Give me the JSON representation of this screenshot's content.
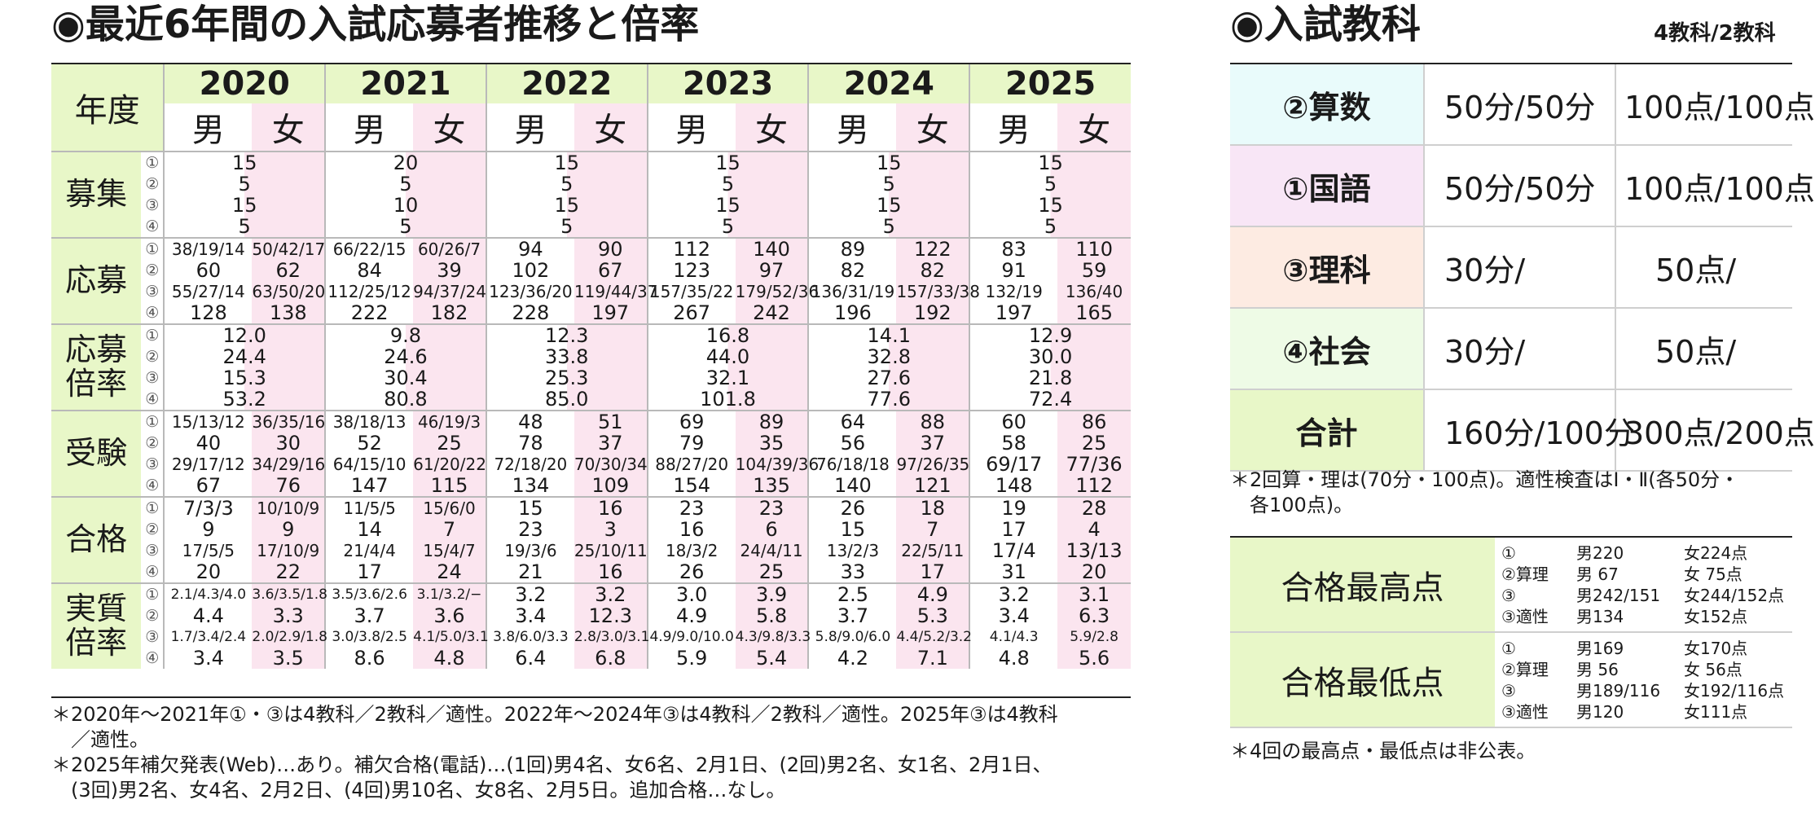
{
  "left": {
    "title": "◉最近6年間の入試応募者推移と倍率",
    "header": {
      "nendo": "年度",
      "years": [
        "2020",
        "2021",
        "2022",
        "2023",
        "2024",
        "2025"
      ],
      "male": "男",
      "female": "女"
    },
    "rows": [
      {
        "label": "募集",
        "merged": true,
        "nums": [
          "①",
          "②",
          "③",
          "④"
        ],
        "cells": [
          [
            "15",
            "5",
            "15",
            "5"
          ],
          [
            "20",
            "5",
            "10",
            "5"
          ],
          [
            "15",
            "5",
            "15",
            "5"
          ],
          [
            "15",
            "5",
            "15",
            "5"
          ],
          [
            "15",
            "5",
            "15",
            "5"
          ],
          [
            "15",
            "5",
            "15",
            "5"
          ]
        ]
      },
      {
        "label": "応募",
        "merged": false,
        "nums": [
          "①",
          "②",
          "③",
          "④"
        ],
        "cells": [
          [
            "38/19/14",
            "60",
            "55/27/14",
            "128"
          ],
          [
            "50/42/17",
            "62",
            "63/50/20",
            "138"
          ],
          [
            "66/22/15",
            "84",
            "112/25/12",
            "222"
          ],
          [
            "60/26/7",
            "39",
            "94/37/24",
            "182"
          ],
          [
            "94",
            "102",
            "123/36/20",
            "228"
          ],
          [
            "90",
            "67",
            "119/44/37",
            "197"
          ],
          [
            "112",
            "123",
            "157/35/22",
            "267"
          ],
          [
            "140",
            "97",
            "179/52/36",
            "242"
          ],
          [
            "89",
            "82",
            "136/31/19",
            "196"
          ],
          [
            "122",
            "82",
            "157/33/38",
            "192"
          ],
          [
            "83",
            "91",
            "132/19",
            "197"
          ],
          [
            "110",
            "59",
            "136/40",
            "165"
          ]
        ]
      },
      {
        "label": "応募\n倍率",
        "merged": true,
        "nums": [
          "①",
          "②",
          "③",
          "④"
        ],
        "cells": [
          [
            "12.0",
            "24.4",
            "15.3",
            "53.2"
          ],
          [
            "9.8",
            "24.6",
            "30.4",
            "80.8"
          ],
          [
            "12.3",
            "33.8",
            "25.3",
            "85.0"
          ],
          [
            "16.8",
            "44.0",
            "32.1",
            "101.8"
          ],
          [
            "14.1",
            "32.8",
            "27.6",
            "77.6"
          ],
          [
            "12.9",
            "30.0",
            "21.8",
            "72.4"
          ]
        ]
      },
      {
        "label": "受験",
        "merged": false,
        "nums": [
          "①",
          "②",
          "③",
          "④"
        ],
        "cells": [
          [
            "15/13/12",
            "40",
            "29/17/12",
            "67"
          ],
          [
            "36/35/16",
            "30",
            "34/29/16",
            "76"
          ],
          [
            "38/18/13",
            "52",
            "64/15/10",
            "147"
          ],
          [
            "46/19/3",
            "25",
            "61/20/22",
            "115"
          ],
          [
            "48",
            "78",
            "72/18/20",
            "134"
          ],
          [
            "51",
            "37",
            "70/30/34",
            "109"
          ],
          [
            "69",
            "79",
            "88/27/20",
            "154"
          ],
          [
            "89",
            "35",
            "104/39/36",
            "135"
          ],
          [
            "64",
            "56",
            "76/18/18",
            "140"
          ],
          [
            "88",
            "37",
            "97/26/35",
            "121"
          ],
          [
            "60",
            "58",
            "69/17",
            "148"
          ],
          [
            "86",
            "25",
            "77/36",
            "112"
          ]
        ]
      },
      {
        "label": "合格",
        "merged": false,
        "nums": [
          "①",
          "②",
          "③",
          "④"
        ],
        "cells": [
          [
            "7/3/3",
            "9",
            "17/5/5",
            "20"
          ],
          [
            "10/10/9",
            "9",
            "17/10/9",
            "22"
          ],
          [
            "11/5/5",
            "14",
            "21/4/4",
            "17"
          ],
          [
            "15/6/0",
            "7",
            "15/4/7",
            "24"
          ],
          [
            "15",
            "23",
            "19/3/6",
            "21"
          ],
          [
            "16",
            "3",
            "25/10/11",
            "16"
          ],
          [
            "23",
            "16",
            "18/3/2",
            "26"
          ],
          [
            "23",
            "6",
            "24/4/11",
            "25"
          ],
          [
            "26",
            "15",
            "13/2/3",
            "33"
          ],
          [
            "18",
            "7",
            "22/5/11",
            "17"
          ],
          [
            "19",
            "17",
            "17/4",
            "31"
          ],
          [
            "28",
            "4",
            "13/13",
            "20"
          ]
        ]
      },
      {
        "label": "実質\n倍率",
        "merged": false,
        "nums": [
          "①",
          "②",
          "③",
          "④"
        ],
        "cells": [
          [
            "2.1/4.3/4.0",
            "4.4",
            "1.7/3.4/2.4",
            "3.4"
          ],
          [
            "3.6/3.5/1.8",
            "3.3",
            "2.0/2.9/1.8",
            "3.5"
          ],
          [
            "3.5/3.6/2.6",
            "3.7",
            "3.0/3.8/2.5",
            "8.6"
          ],
          [
            "3.1/3.2/−",
            "3.6",
            "4.1/5.0/3.1",
            "4.8"
          ],
          [
            "3.2",
            "3.4",
            "3.8/6.0/3.3",
            "6.4"
          ],
          [
            "3.2",
            "12.3",
            "2.8/3.0/3.1",
            "6.8"
          ],
          [
            "3.0",
            "4.9",
            "4.9/9.0/10.0",
            "5.9"
          ],
          [
            "3.9",
            "5.8",
            "4.3/9.8/3.3",
            "5.4"
          ],
          [
            "2.5",
            "3.7",
            "5.8/9.0/6.0",
            "4.2"
          ],
          [
            "4.9",
            "5.3",
            "4.4/5.2/3.2",
            "7.1"
          ],
          [
            "3.2",
            "3.4",
            "4.1/4.3",
            "4.8"
          ],
          [
            "3.1",
            "6.3",
            "5.9/2.8",
            "5.6"
          ]
        ]
      }
    ],
    "notes": [
      "＊2020年～2021年①・③は4教科／2教科／適性。2022年～2024年③は4教科／2教科／適性。2025年③は4教科",
      "　／適性。",
      "＊2025年補欠発表(Web)…あり。補欠合格(電話)…(1回)男4名、女6名、2月1日、(2回)男2名、女1名、2月1日、",
      "　(3回)男2名、女4名、2月2日、(4回)男10名、女8名、2月5日。追加合格…なし。"
    ]
  },
  "right": {
    "title": "◉入試教科",
    "sub": "4教科/2教科",
    "subjects": [
      {
        "name": "②算数",
        "time": "50分/50分",
        "points": "100点/100点",
        "color": "#e9fbfb"
      },
      {
        "name": "①国語",
        "time": "50分/50分",
        "points": "100点/100点",
        "color": "#f8e6f6"
      },
      {
        "name": "③理科",
        "time": "30分/",
        "points": "　50点/",
        "color": "#fdebe2"
      },
      {
        "name": "④社会",
        "time": "30分/",
        "points": "　50点/",
        "color": "#eefbe6"
      },
      {
        "name": "合計",
        "time": "160分/100分",
        "points": "300点/200点",
        "color": "#e8f7c8"
      }
    ],
    "subj_note": [
      "＊2回算・理は(70分・100点)。適性検査はⅠ・Ⅱ(各50分・",
      "　各100点)。"
    ],
    "scores": [
      {
        "label": "合格最高点",
        "rows": [
          [
            "①",
            "男220",
            "女224点"
          ],
          [
            "②算理",
            "男 67",
            "女 75点"
          ],
          [
            "③",
            "男242/151",
            "女244/152点"
          ],
          [
            "③適性",
            "男134",
            "女152点"
          ]
        ]
      },
      {
        "label": "合格最低点",
        "rows": [
          [
            "①",
            "男169",
            "女170点"
          ],
          [
            "②算理",
            "男 56",
            "女 56点"
          ],
          [
            "③",
            "男189/116",
            "女192/116点"
          ],
          [
            "③適性",
            "男120",
            "女111点"
          ]
        ]
      }
    ],
    "score_note": "＊4回の最高点・最低点は非公表。"
  }
}
